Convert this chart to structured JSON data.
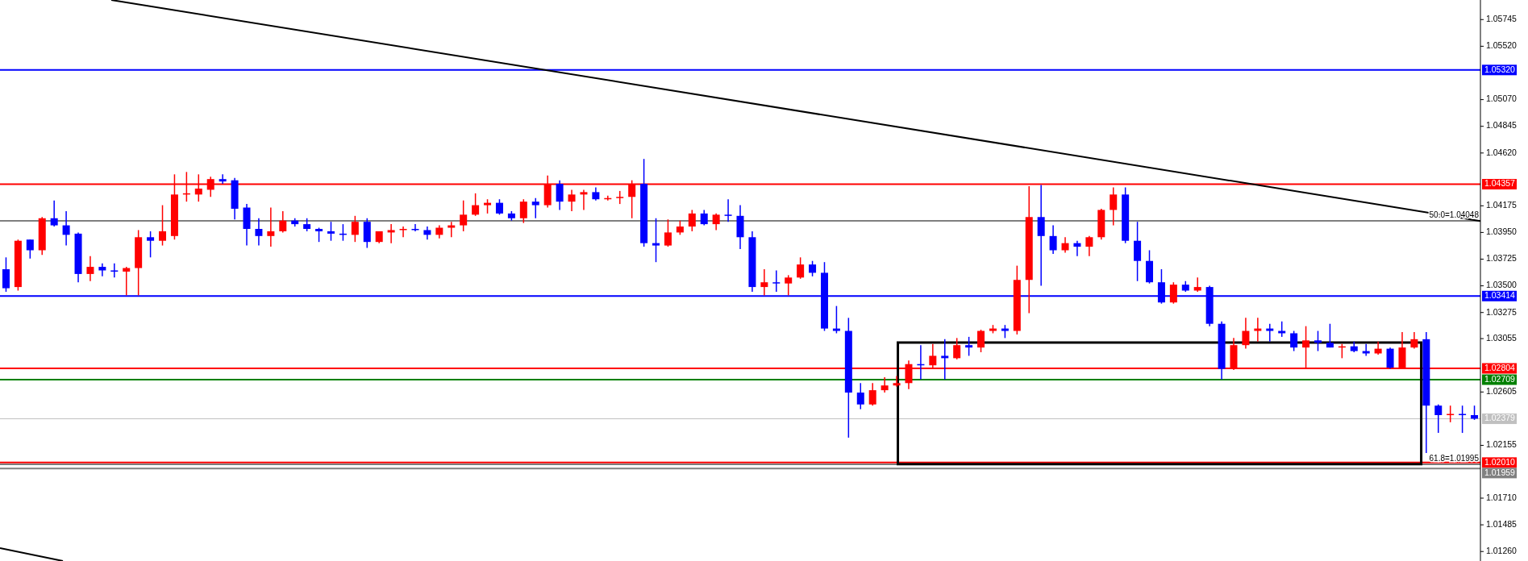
{
  "chart_data": {
    "type": "candlestick",
    "ylim": [
      1.0118,
      1.0591
    ],
    "tick_labels": "y",
    "yticks": [
      {
        "value": 1.0126,
        "label": "1.01260"
      },
      {
        "value": 1.01485,
        "label": "1.01485"
      },
      {
        "value": 1.0171,
        "label": "1.01710"
      },
      {
        "value": 1.02155,
        "label": "1.02155"
      },
      {
        "value": 1.02605,
        "label": "1.02605"
      },
      {
        "value": 1.03055,
        "label": "1.03055"
      },
      {
        "value": 1.03275,
        "label": "1.03275"
      },
      {
        "value": 1.035,
        "label": "1.03500"
      },
      {
        "value": 1.03725,
        "label": "1.03725"
      },
      {
        "value": 1.0395,
        "label": "1.03950"
      },
      {
        "value": 1.04175,
        "label": "1.04175"
      },
      {
        "value": 1.0462,
        "label": "1.04620"
      },
      {
        "value": 1.04845,
        "label": "1.04845"
      },
      {
        "value": 1.0507,
        "label": "1.05070"
      },
      {
        "value": 1.0552,
        "label": "1.05520"
      },
      {
        "value": 1.05745,
        "label": "1.05745"
      }
    ],
    "categories": [
      null,
      null,
      null,
      null,
      null,
      null,
      null,
      null,
      null,
      null,
      null,
      null,
      null,
      null,
      null,
      null,
      null,
      null,
      null,
      null,
      null,
      null,
      null,
      null,
      null,
      null,
      null,
      null,
      null,
      null,
      null,
      null,
      null,
      null,
      null,
      null,
      null,
      null,
      null,
      null,
      null,
      null,
      null,
      null,
      null,
      null,
      null,
      null,
      null,
      null,
      null,
      null,
      null,
      null,
      null,
      null,
      null,
      null,
      null,
      null,
      null,
      null,
      null,
      null,
      null,
      null,
      null,
      null,
      null,
      null,
      null,
      null,
      null,
      null,
      null,
      null,
      null,
      null,
      null,
      null,
      null,
      null,
      null,
      null,
      null,
      null,
      null,
      null,
      null,
      null,
      null,
      null,
      null,
      null,
      null,
      null,
      null,
      null,
      null,
      null,
      null,
      null,
      null,
      null,
      null,
      null,
      null,
      null,
      null,
      null,
      null,
      null,
      null,
      null,
      null,
      null,
      null,
      null,
      null,
      null,
      null,
      null,
      null
    ],
    "ohlc": [
      [
        1.0364,
        1.0374,
        1.0345,
        1.0348
      ],
      [
        1.0349,
        1.0389,
        1.0346,
        1.0388
      ],
      [
        1.0389,
        1.0389,
        1.0373,
        1.038
      ],
      [
        1.038,
        1.0408,
        1.0376,
        1.0407
      ],
      [
        1.0407,
        1.0422,
        1.04,
        1.0401
      ],
      [
        1.0401,
        1.0413,
        1.0384,
        1.0393
      ],
      [
        1.0394,
        1.0395,
        1.0353,
        1.036
      ],
      [
        1.036,
        1.0375,
        1.0354,
        1.0366
      ],
      [
        1.0366,
        1.0369,
        1.0358,
        1.0363
      ],
      [
        1.0363,
        1.0369,
        1.0357,
        1.0362
      ],
      [
        1.0362,
        1.0366,
        1.0342,
        1.0365
      ],
      [
        1.0365,
        1.0397,
        1.0342,
        1.0391
      ],
      [
        1.0391,
        1.0396,
        1.0374,
        1.0388
      ],
      [
        1.0388,
        1.0418,
        1.0384,
        1.0396
      ],
      [
        1.0392,
        1.0444,
        1.0389,
        1.0427
      ],
      [
        1.0427,
        1.0446,
        1.0421,
        1.0428
      ],
      [
        1.0427,
        1.0444,
        1.0421,
        1.0432
      ],
      [
        1.0431,
        1.0442,
        1.0425,
        1.044
      ],
      [
        1.044,
        1.0444,
        1.0436,
        1.0438
      ],
      [
        1.0439,
        1.0441,
        1.0406,
        1.0415
      ],
      [
        1.0416,
        1.0419,
        1.0384,
        1.0398
      ],
      [
        1.0398,
        1.0407,
        1.0384,
        1.0392
      ],
      [
        1.0392,
        1.0416,
        1.0383,
        1.0396
      ],
      [
        1.0396,
        1.0413,
        1.0395,
        1.0405
      ],
      [
        1.0405,
        1.0407,
        1.04,
        1.0402
      ],
      [
        1.0402,
        1.0407,
        1.0396,
        1.0398
      ],
      [
        1.0398,
        1.0399,
        1.0387,
        1.0396
      ],
      [
        1.0396,
        1.0404,
        1.0388,
        1.0394
      ],
      [
        1.0394,
        1.0402,
        1.0388,
        1.0393
      ],
      [
        1.0393,
        1.0409,
        1.0387,
        1.0404
      ],
      [
        1.0404,
        1.0407,
        1.0382,
        1.0387
      ],
      [
        1.0387,
        1.0396,
        1.0386,
        1.0396
      ],
      [
        1.0395,
        1.0402,
        1.0386,
        1.0397
      ],
      [
        1.0397,
        1.04,
        1.0391,
        1.0398
      ],
      [
        1.0398,
        1.0402,
        1.0396,
        1.0397
      ],
      [
        1.0397,
        1.04,
        1.0389,
        1.0393
      ],
      [
        1.0393,
        1.0401,
        1.039,
        1.0399
      ],
      [
        1.0399,
        1.0404,
        1.0391,
        1.0401
      ],
      [
        1.0401,
        1.0422,
        1.0396,
        1.041
      ],
      [
        1.041,
        1.0428,
        1.0409,
        1.0418
      ],
      [
        1.0418,
        1.0423,
        1.0411,
        1.042
      ],
      [
        1.042,
        1.0423,
        1.041,
        1.0411
      ],
      [
        1.0411,
        1.0413,
        1.0405,
        1.0407
      ],
      [
        1.0407,
        1.0423,
        1.0403,
        1.0421
      ],
      [
        1.0421,
        1.0424,
        1.0407,
        1.0418
      ],
      [
        1.0418,
        1.0443,
        1.0416,
        1.0436
      ],
      [
        1.0436,
        1.0439,
        1.0414,
        1.0421
      ],
      [
        1.0421,
        1.0431,
        1.0413,
        1.0427
      ],
      [
        1.0427,
        1.0431,
        1.0414,
        1.0429
      ],
      [
        1.0429,
        1.0433,
        1.0422,
        1.0423
      ],
      [
        1.0423,
        1.0426,
        1.0422,
        1.0424
      ],
      [
        1.0424,
        1.043,
        1.0419,
        1.0425
      ],
      [
        1.0425,
        1.0439,
        1.0407,
        1.0436
      ],
      [
        1.0436,
        1.0457,
        1.0383,
        1.0386
      ],
      [
        1.0386,
        1.0407,
        1.037,
        1.0384
      ],
      [
        1.0384,
        1.0406,
        1.0383,
        1.0395
      ],
      [
        1.0395,
        1.0405,
        1.0393,
        1.04
      ],
      [
        1.04,
        1.0414,
        1.0396,
        1.0411
      ],
      [
        1.0411,
        1.0414,
        1.0401,
        1.0402
      ],
      [
        1.0402,
        1.0411,
        1.0397,
        1.041
      ],
      [
        1.041,
        1.0423,
        1.0404,
        1.0409
      ],
      [
        1.0409,
        1.0418,
        1.0381,
        1.0391
      ],
      [
        1.0391,
        1.0396,
        1.0345,
        1.0349
      ],
      [
        1.0349,
        1.0364,
        1.0342,
        1.0353
      ],
      [
        1.0353,
        1.0363,
        1.0345,
        1.0352
      ],
      [
        1.0352,
        1.0359,
        1.0342,
        1.0357
      ],
      [
        1.0357,
        1.0374,
        1.0356,
        1.0368
      ],
      [
        1.0368,
        1.0371,
        1.0358,
        1.0361
      ],
      [
        1.0361,
        1.037,
        1.0312,
        1.0314
      ],
      [
        1.0314,
        1.0333,
        1.031,
        1.0312
      ],
      [
        1.0312,
        1.0323,
        1.0222,
        1.026
      ],
      [
        1.026,
        1.0268,
        1.0246,
        1.025
      ],
      [
        1.025,
        1.0268,
        1.0249,
        1.0262
      ],
      [
        1.0262,
        1.0273,
        1.026,
        1.0266
      ],
      [
        1.0266,
        1.0274,
        1.0265,
        1.0268
      ],
      [
        1.0268,
        1.0287,
        1.0263,
        1.0284
      ],
      [
        1.0284,
        1.03,
        1.0271,
        1.0283
      ],
      [
        1.0283,
        1.0301,
        1.028,
        1.0291
      ],
      [
        1.0291,
        1.0305,
        1.0271,
        1.0289
      ],
      [
        1.0289,
        1.0306,
        1.0288,
        1.03
      ],
      [
        1.03,
        1.0307,
        1.0291,
        1.0298
      ],
      [
        1.0298,
        1.0313,
        1.0294,
        1.0312
      ],
      [
        1.0312,
        1.0317,
        1.031,
        1.0314
      ],
      [
        1.0314,
        1.0317,
        1.0306,
        1.0312
      ],
      [
        1.0312,
        1.0367,
        1.0309,
        1.0355
      ],
      [
        1.0355,
        1.0434,
        1.0327,
        1.0408
      ],
      [
        1.0408,
        1.0435,
        1.035,
        1.0392
      ],
      [
        1.0392,
        1.0401,
        1.0377,
        1.038
      ],
      [
        1.038,
        1.0391,
        1.0378,
        1.0386
      ],
      [
        1.0386,
        1.0388,
        1.0375,
        1.0383
      ],
      [
        1.0383,
        1.0392,
        1.0375,
        1.0391
      ],
      [
        1.0391,
        1.0415,
        1.0389,
        1.0414
      ],
      [
        1.0414,
        1.0433,
        1.0401,
        1.0427
      ],
      [
        1.0427,
        1.0433,
        1.0386,
        1.0388
      ],
      [
        1.0388,
        1.0404,
        1.0354,
        1.0371
      ],
      [
        1.0371,
        1.038,
        1.0352,
        1.0353
      ],
      [
        1.0353,
        1.0364,
        1.0335,
        1.0336
      ],
      [
        1.0336,
        1.0353,
        1.0335,
        1.0351
      ],
      [
        1.0351,
        1.0354,
        1.0345,
        1.0346
      ],
      [
        1.0346,
        1.0357,
        1.0345,
        1.0349
      ],
      [
        1.0349,
        1.035,
        1.0316,
        1.0318
      ],
      [
        1.0318,
        1.032,
        1.0271,
        1.028
      ],
      [
        1.028,
        1.0306,
        1.0279,
        1.03
      ],
      [
        1.03,
        1.0323,
        1.0297,
        1.0312
      ],
      [
        1.0312,
        1.0323,
        1.0303,
        1.0314
      ],
      [
        1.0314,
        1.0318,
        1.0303,
        1.0312
      ],
      [
        1.0312,
        1.032,
        1.0307,
        1.031
      ],
      [
        1.031,
        1.0312,
        1.0295,
        1.0298
      ],
      [
        1.0298,
        1.0316,
        1.0281,
        1.0304
      ],
      [
        1.0304,
        1.0312,
        1.0295,
        1.0302
      ],
      [
        1.0302,
        1.0318,
        1.0298,
        1.0298
      ],
      [
        1.0298,
        1.0301,
        1.0289,
        1.0299
      ],
      [
        1.0299,
        1.0303,
        1.0294,
        1.0295
      ],
      [
        1.0295,
        1.0301,
        1.0291,
        1.0293
      ],
      [
        1.0293,
        1.0303,
        1.0292,
        1.0297
      ],
      [
        1.0297,
        1.0298,
        1.028,
        1.0281
      ],
      [
        1.0281,
        1.0311,
        1.028,
        1.0298
      ],
      [
        1.0298,
        1.0311,
        1.0297,
        1.0305
      ],
      [
        1.0305,
        1.0311,
        1.0209,
        1.0249
      ],
      [
        1.0249,
        1.025,
        1.0226,
        1.0241
      ],
      [
        1.0241,
        1.0249,
        1.0235,
        1.0242
      ],
      [
        1.0242,
        1.0249,
        1.0226,
        1.0241
      ],
      [
        1.0241,
        1.0249,
        1.0237,
        1.0238
      ]
    ],
    "colors": [
      "#0000ff",
      "#ff0000",
      "#0000ff",
      "#ff0000",
      "#0000ff",
      "#0000ff",
      "#0000ff",
      "#ff0000",
      "#0000ff",
      "#0000ff",
      "#ff0000",
      "#ff0000",
      "#0000ff",
      "#ff0000",
      "#ff0000",
      "#ff0000",
      "#ff0000",
      "#ff0000",
      "#0000ff",
      "#0000ff",
      "#0000ff",
      "#0000ff",
      "#ff0000",
      "#ff0000",
      "#0000ff",
      "#0000ff",
      "#0000ff",
      "#0000ff",
      "#0000ff",
      "#ff0000",
      "#0000ff",
      "#ff0000",
      "#ff0000",
      "#ff0000",
      "#0000ff",
      "#0000ff",
      "#ff0000",
      "#ff0000",
      "#ff0000",
      "#ff0000",
      "#ff0000",
      "#0000ff",
      "#0000ff",
      "#ff0000",
      "#0000ff",
      "#ff0000",
      "#0000ff",
      "#ff0000",
      "#ff0000",
      "#0000ff",
      "#ff0000",
      "#ff0000",
      "#ff0000",
      "#0000ff",
      "#0000ff",
      "#ff0000",
      "#ff0000",
      "#ff0000",
      "#0000ff",
      "#ff0000",
      "#0000ff",
      "#0000ff",
      "#0000ff",
      "#ff0000",
      "#0000ff",
      "#ff0000",
      "#ff0000",
      "#0000ff",
      "#0000ff",
      "#0000ff",
      "#0000ff",
      "#0000ff",
      "#ff0000",
      "#ff0000",
      "#ff0000",
      "#ff0000",
      "#0000ff",
      "#ff0000",
      "#0000ff",
      "#ff0000",
      "#0000ff",
      "#ff0000",
      "#ff0000",
      "#0000ff",
      "#ff0000",
      "#ff0000",
      "#0000ff",
      "#0000ff",
      "#ff0000",
      "#0000ff",
      "#ff0000",
      "#ff0000",
      "#ff0000",
      "#0000ff",
      "#0000ff",
      "#0000ff",
      "#0000ff",
      "#ff0000",
      "#0000ff",
      "#ff0000",
      "#0000ff",
      "#0000ff",
      "#ff0000",
      "#ff0000",
      "#ff0000",
      "#0000ff",
      "#0000ff",
      "#0000ff",
      "#ff0000",
      "#0000ff",
      "#0000ff",
      "#ff0000",
      "#0000ff",
      "#0000ff",
      "#ff0000",
      "#0000ff",
      "#ff0000",
      "#ff0000",
      "#0000ff",
      "#0000ff",
      "#ff0000",
      "#0000ff",
      "#0000ff"
    ],
    "ref_lines": [
      {
        "axis": "y",
        "value": 1.0532,
        "label": "1.05320",
        "color": "#0000ff"
      },
      {
        "axis": "y",
        "value": 1.04357,
        "label": "1.04357",
        "color": "#ff0000"
      },
      {
        "axis": "y",
        "value": 1.04048,
        "color": "#000000"
      },
      {
        "axis": "y",
        "value": 1.03414,
        "label": "1.03414",
        "color": "#0000ff"
      },
      {
        "axis": "y",
        "value": 1.02804,
        "label": "1.02804",
        "color": "#ff0000"
      },
      {
        "axis": "y",
        "value": 1.02709,
        "label": "1.02709",
        "color": "#008000"
      },
      {
        "axis": "y",
        "value": 1.02379,
        "label": "1.02379",
        "color": "#c0c0c0"
      },
      {
        "axis": "y",
        "value": 1.0201,
        "label": "1.02010",
        "color": "#ff0000"
      },
      {
        "axis": "y",
        "value": 1.01995,
        "color": "#000000"
      },
      {
        "axis": "y",
        "value": 1.01959,
        "label": "1.01959",
        "color": "#808080"
      }
    ],
    "annotations": [
      {
        "text": "50.0=1.04048",
        "y": 1.04048
      },
      {
        "text": "61.8=1.01995",
        "y": 1.01995
      }
    ]
  }
}
